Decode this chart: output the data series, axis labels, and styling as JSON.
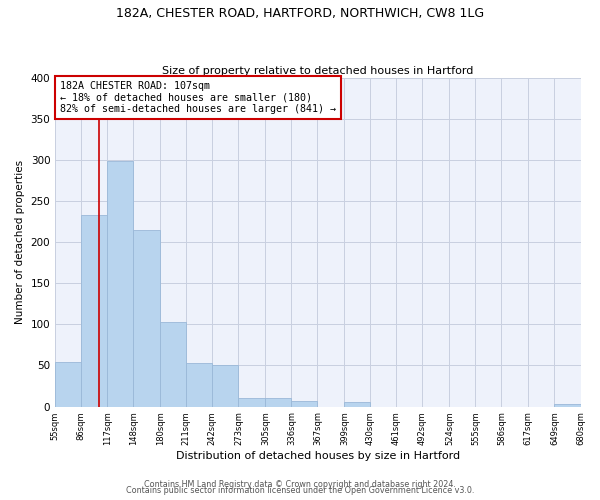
{
  "title": "182A, CHESTER ROAD, HARTFORD, NORTHWICH, CW8 1LG",
  "subtitle": "Size of property relative to detached houses in Hartford",
  "xlabel": "Distribution of detached houses by size in Hartford",
  "ylabel": "Number of detached properties",
  "footer_line1": "Contains HM Land Registry data © Crown copyright and database right 2024.",
  "footer_line2": "Contains public sector information licensed under the Open Government Licence v3.0.",
  "bin_edges": [
    55,
    86,
    117,
    148,
    180,
    211,
    242,
    273,
    305,
    336,
    367,
    399,
    430,
    461,
    492,
    524,
    555,
    586,
    617,
    649,
    680
  ],
  "bar_heights": [
    54,
    233,
    299,
    215,
    103,
    53,
    50,
    10,
    10,
    7,
    0,
    5,
    0,
    0,
    0,
    0,
    0,
    0,
    0,
    3
  ],
  "bar_color": "#b8d4ee",
  "bar_edgecolor": "#9ab8d8",
  "vline_x": 107,
  "vline_color": "#cc0000",
  "annotation_title": "182A CHESTER ROAD: 107sqm",
  "annotation_line1": "← 18% of detached houses are smaller (180)",
  "annotation_line2": "82% of semi-detached houses are larger (841) →",
  "annotation_box_edgecolor": "#cc0000",
  "ylim": [
    0,
    400
  ],
  "yticks": [
    0,
    50,
    100,
    150,
    200,
    250,
    300,
    350,
    400
  ],
  "background_color": "#eef2fb",
  "grid_color": "#c8cfe0"
}
